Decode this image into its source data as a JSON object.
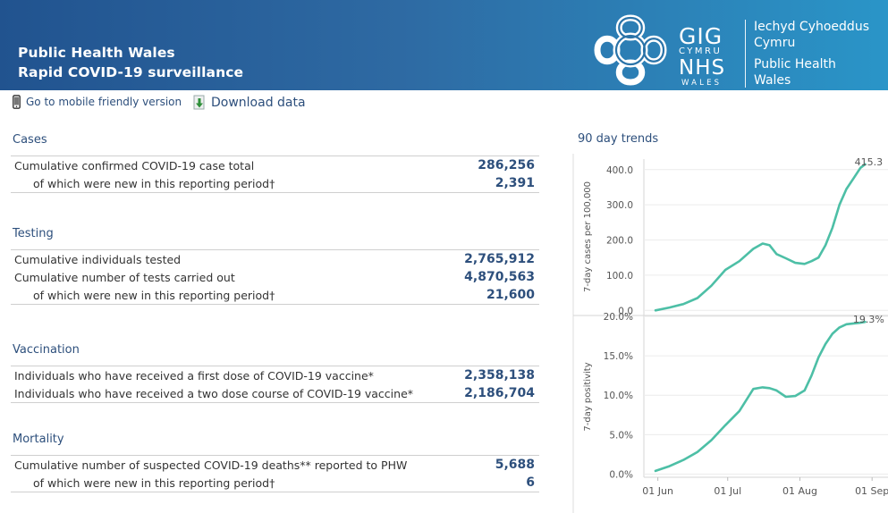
{
  "header": {
    "title_line1": "Public Health Wales",
    "title_line2": "Rapid COVID-19 surveillance",
    "logo": {
      "gig": "GIG",
      "cymru": "CYMRU",
      "nhs": "NHS",
      "wales": "WALES",
      "welsh_line1": "Iechyd Cyhoeddus",
      "welsh_line2": "Cymru",
      "english_line1": "Public Health",
      "english_line2": "Wales"
    },
    "colors": {
      "gradient_start": "#21538f",
      "gradient_end": "#2a95c8"
    }
  },
  "toolbar": {
    "mobile_label": "Go to mobile friendly version",
    "mobile_icon": "phone-icon",
    "download_label": "Download data",
    "download_icon": "download-icon"
  },
  "sections": {
    "cases": {
      "title": "Cases",
      "rows": [
        {
          "label": "Cumulative confirmed COVID-19 case total",
          "value": "286,256"
        },
        {
          "label": "of which were new in this reporting period†",
          "value": "2,391"
        }
      ]
    },
    "testing": {
      "title": "Testing",
      "rows": [
        {
          "label": "Cumulative individuals tested",
          "value": "2,765,912"
        },
        {
          "label": "Cumulative number of tests carried out",
          "value": "4,870,563"
        },
        {
          "label": "of which were new in this reporting period†",
          "value": "21,600"
        }
      ]
    },
    "vaccination": {
      "title": "Vaccination",
      "rows": [
        {
          "label": "Individuals who have received a first dose of COVID-19 vaccine*",
          "value": "2,358,138"
        },
        {
          "label": "Individuals who have received a two dose course of COVID-19 vaccine*",
          "value": "2,186,704"
        }
      ]
    },
    "mortality": {
      "title": "Mortality",
      "rows": [
        {
          "label": "Cumulative number of suspected COVID-19 deaths** reported to PHW",
          "value": "5,688"
        },
        {
          "label": "of which were new in this reporting period†",
          "value": "6"
        }
      ]
    }
  },
  "trends": {
    "title": "90 day trends",
    "x_tick_labels": [
      "01 Jun",
      "01 Jul",
      "01 Aug",
      "01 Sep"
    ],
    "line_color": "#4dbfa6"
  },
  "chart_data": [
    {
      "type": "line",
      "ylabel": "7-day cases per 100,000",
      "y_ticks": [
        "0.0",
        "100.0",
        "200.0",
        "300.0",
        "400.0"
      ],
      "ylim": [
        -12,
        430
      ],
      "end_label": "415.3",
      "x": [
        "2021-05-31",
        "2021-06-06",
        "2021-06-12",
        "2021-06-18",
        "2021-06-24",
        "2021-06-30",
        "2021-07-06",
        "2021-07-12",
        "2021-07-16",
        "2021-07-19",
        "2021-07-22",
        "2021-07-26",
        "2021-07-30",
        "2021-08-03",
        "2021-08-06",
        "2021-08-09",
        "2021-08-12",
        "2021-08-15",
        "2021-08-18",
        "2021-08-21",
        "2021-08-24",
        "2021-08-27",
        "2021-08-29"
      ],
      "values": [
        0,
        8,
        18,
        35,
        70,
        115,
        140,
        175,
        190,
        185,
        160,
        148,
        135,
        132,
        140,
        150,
        185,
        235,
        300,
        345,
        375,
        405,
        415.3
      ]
    },
    {
      "type": "line",
      "ylabel": "7-day positivity",
      "y_ticks": [
        "0.0%",
        "5.0%",
        "10.0%",
        "15.0%",
        "20.0%"
      ],
      "ylim": [
        -0.4,
        20
      ],
      "end_label": "19.3%",
      "x": [
        "2021-05-31",
        "2021-06-06",
        "2021-06-12",
        "2021-06-18",
        "2021-06-24",
        "2021-06-30",
        "2021-07-06",
        "2021-07-12",
        "2021-07-16",
        "2021-07-19",
        "2021-07-22",
        "2021-07-26",
        "2021-07-30",
        "2021-08-03",
        "2021-08-06",
        "2021-08-09",
        "2021-08-12",
        "2021-08-15",
        "2021-08-18",
        "2021-08-21",
        "2021-08-24",
        "2021-08-27",
        "2021-08-29"
      ],
      "values": [
        0.4,
        1.0,
        1.8,
        2.8,
        4.3,
        6.2,
        8.0,
        10.8,
        11.0,
        10.9,
        10.6,
        9.8,
        9.9,
        10.6,
        12.5,
        14.8,
        16.5,
        17.8,
        18.6,
        19.0,
        19.1,
        19.2,
        19.3
      ]
    }
  ]
}
